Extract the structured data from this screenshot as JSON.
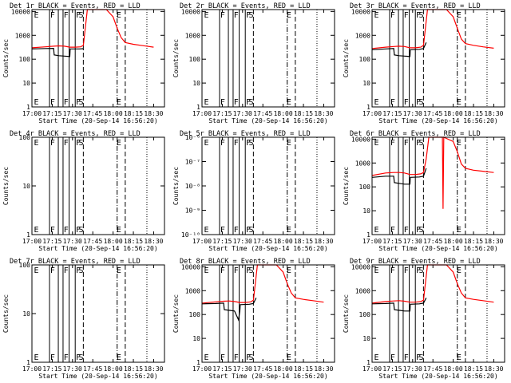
{
  "figure": {
    "background": "#ffffff",
    "axis_color": "#000000"
  },
  "shared": {
    "xtick_labels": [
      "17:00",
      "17:15",
      "17:30",
      "17:45",
      "18:00",
      "18:15",
      "18:30"
    ],
    "xlim_minutes": [
      1020,
      1118
    ],
    "ylabel": "Counts/sec",
    "marker_lines": [
      {
        "time_min": 1033,
        "style": "solid"
      },
      {
        "time_min": 1039.5,
        "style": "solid"
      },
      {
        "time_min": 1043,
        "style": "solid"
      },
      {
        "time_min": 1047.5,
        "style": "solid"
      },
      {
        "time_min": 1052,
        "style": "solid"
      },
      {
        "time_min": 1058,
        "style": "dashed"
      },
      {
        "time_min": 1083,
        "style": "dashdot"
      },
      {
        "time_min": 1089,
        "style": "dashed"
      },
      {
        "time_min": 1105,
        "style": "dotted"
      }
    ],
    "flag_letters": [
      {
        "letter": "E",
        "time_min": 1021.5
      },
      {
        "letter": "F",
        "time_min": 1033.5
      },
      {
        "letter": "F",
        "time_min": 1043.5
      },
      {
        "letter": "F",
        "time_min": 1052.5
      },
      {
        "letter": "S",
        "time_min": 1054.5
      },
      {
        "letter": "E",
        "time_min": 1082.5
      }
    ],
    "colors": {
      "events": "#000000",
      "lld": "#ff0000"
    }
  },
  "chart_data": [
    {
      "type": "line",
      "title": "Det 1r BLACK = Events, RED = LLD",
      "xlabel": "Start Time (20-Sep-14 16:56:20)",
      "ylabel": "Counts/sec",
      "yscale": "log",
      "ylim": [
        1,
        12000
      ],
      "ytick_labels": [
        "1",
        "10",
        "100",
        "1000",
        "10000"
      ],
      "ytick_values": [
        1,
        10,
        100,
        1000,
        10000
      ],
      "series": [
        {
          "name": "Events",
          "color": "#000000",
          "points": [
            [
              1020,
              270
            ],
            [
              1030,
              280
            ],
            [
              1036,
              285
            ],
            [
              1036.5,
              150
            ],
            [
              1040,
              140
            ],
            [
              1044,
              135
            ],
            [
              1048,
              130
            ],
            [
              1048.3,
              270
            ],
            [
              1055,
              270
            ],
            [
              1058,
              275
            ]
          ]
        },
        {
          "name": "LLD",
          "color": "#ff0000",
          "points": [
            [
              1020,
              300
            ],
            [
              1030,
              330
            ],
            [
              1036,
              350
            ],
            [
              1040,
              360
            ],
            [
              1044,
              350
            ],
            [
              1048,
              320
            ],
            [
              1052,
              320
            ],
            [
              1056,
              330
            ],
            [
              1058,
              380
            ],
            [
              1061,
              12000
            ],
            [
              1075,
              12000
            ],
            [
              1080,
              6000
            ],
            [
              1083,
              2000
            ],
            [
              1086,
              800
            ],
            [
              1089,
              500
            ],
            [
              1095,
              420
            ],
            [
              1102,
              370
            ],
            [
              1110,
              320
            ]
          ]
        }
      ]
    },
    {
      "type": "line",
      "title": "Det 2r BLACK = Events, RED = LLD",
      "xlabel": "Start Time (20-Sep-14 16:56:20)",
      "ylabel": "Counts/sec",
      "yscale": "log",
      "ylim": [
        1,
        12000
      ],
      "ytick_labels": [
        "1",
        "10",
        "100",
        "1000",
        "10000"
      ],
      "ytick_values": [
        1,
        10,
        100,
        1000,
        10000
      ],
      "series": []
    },
    {
      "type": "line",
      "title": "Det 3r BLACK = Events, RED = LLD",
      "xlabel": "Start Time (20-Sep-14 16:56:20)",
      "ylabel": "Counts/sec",
      "yscale": "log",
      "ylim": [
        1,
        12000
      ],
      "ytick_labels": [
        "1",
        "10",
        "100",
        "1000",
        "10000"
      ],
      "ytick_values": [
        1,
        10,
        100,
        1000,
        10000
      ],
      "series": [
        {
          "name": "Events",
          "color": "#000000",
          "points": [
            [
              1020,
              250
            ],
            [
              1030,
              270
            ],
            [
              1036,
              280
            ],
            [
              1036.5,
              150
            ],
            [
              1040,
              140
            ],
            [
              1044,
              135
            ],
            [
              1048,
              130
            ],
            [
              1048.3,
              250
            ],
            [
              1055,
              260
            ],
            [
              1058,
              280
            ],
            [
              1060,
              500
            ]
          ]
        },
        {
          "name": "LLD",
          "color": "#ff0000",
          "points": [
            [
              1020,
              280
            ],
            [
              1030,
              320
            ],
            [
              1036,
              340
            ],
            [
              1040,
              350
            ],
            [
              1044,
              340
            ],
            [
              1048,
              300
            ],
            [
              1052,
              300
            ],
            [
              1056,
              320
            ],
            [
              1058,
              380
            ],
            [
              1061,
              12000
            ],
            [
              1075,
              12000
            ],
            [
              1080,
              6000
            ],
            [
              1083,
              2000
            ],
            [
              1086,
              700
            ],
            [
              1089,
              450
            ],
            [
              1095,
              380
            ],
            [
              1102,
              330
            ],
            [
              1110,
              290
            ]
          ]
        }
      ]
    },
    {
      "type": "line",
      "title": "Det 4r BLACK = Events, RED = LLD",
      "xlabel": "Start Time (20-Sep-14 16:56:20)",
      "ylabel": "Counts/sec",
      "yscale": "log",
      "ylim": [
        1,
        100
      ],
      "ytick_labels": [
        "1",
        "10",
        "100"
      ],
      "ytick_values": [
        1,
        10,
        100
      ],
      "series": []
    },
    {
      "type": "line",
      "title": "Det 5r BLACK = Events, RED = LLD",
      "xlabel": "Start Time (20-Sep-14 16:56:20)",
      "ylabel": "Counts/sec",
      "yscale": "log",
      "ylim": [
        1e-10,
        1e-06
      ],
      "ytick_labels": [
        "10⁻¹⁰",
        "10⁻⁹",
        "10⁻⁸",
        "10⁻⁷",
        "10⁻⁶"
      ],
      "ytick_values": [
        1e-10,
        1e-09,
        1e-08,
        1e-07,
        1e-06
      ],
      "series": []
    },
    {
      "type": "line",
      "title": "Det 6r BLACK = Events, RED = LLD",
      "xlabel": "Start Time (20-Sep-14 16:56:20)",
      "ylabel": "Counts/sec",
      "yscale": "log",
      "ylim": [
        1,
        12000
      ],
      "ytick_labels": [
        "1",
        "10",
        "100",
        "1000",
        "10000"
      ],
      "ytick_values": [
        1,
        10,
        100,
        1000,
        10000
      ],
      "series": [
        {
          "name": "Events",
          "color": "#000000",
          "points": [
            [
              1020,
              250
            ],
            [
              1030,
              280
            ],
            [
              1036,
              280
            ],
            [
              1036.5,
              150
            ],
            [
              1040,
              140
            ],
            [
              1044,
              130
            ],
            [
              1048,
              130
            ],
            [
              1048.3,
              250
            ],
            [
              1055,
              260
            ],
            [
              1058,
              280
            ],
            [
              1060,
              600
            ]
          ]
        },
        {
          "name": "LLD",
          "color": "#ff0000",
          "points": [
            [
              1020,
              300
            ],
            [
              1030,
              380
            ],
            [
              1036,
              400
            ],
            [
              1040,
              400
            ],
            [
              1044,
              380
            ],
            [
              1048,
              330
            ],
            [
              1052,
              330
            ],
            [
              1056,
              350
            ],
            [
              1058,
              400
            ],
            [
              1060,
              1500
            ],
            [
              1062,
              12000
            ],
            [
              1072,
              12000
            ],
            [
              1072.5,
              12
            ],
            [
              1073,
              12000
            ],
            [
              1080,
              8000
            ],
            [
              1083,
              3000
            ],
            [
              1086,
              900
            ],
            [
              1089,
              600
            ],
            [
              1095,
              500
            ],
            [
              1102,
              450
            ],
            [
              1110,
              400
            ]
          ]
        }
      ]
    },
    {
      "type": "line",
      "title": "Det 7r BLACK = Events, RED = LLD",
      "xlabel": "Start Time (20-Sep-14 16:56:20)",
      "ylabel": "Counts/sec",
      "yscale": "log",
      "ylim": [
        1,
        100
      ],
      "ytick_labels": [
        "1",
        "10",
        "100"
      ],
      "ytick_values": [
        1,
        10,
        100
      ],
      "series": []
    },
    {
      "type": "line",
      "title": "Det 8r BLACK = Events, RED = LLD",
      "xlabel": "Start Time (20-Sep-14 16:56:20)",
      "ylabel": "Counts/sec",
      "yscale": "log",
      "ylim": [
        1,
        12000
      ],
      "ytick_labels": [
        "1",
        "10",
        "100",
        "1000",
        "10000"
      ],
      "ytick_values": [
        1,
        10,
        100,
        1000,
        10000
      ],
      "series": [
        {
          "name": "Events",
          "color": "#000000",
          "points": [
            [
              1020,
              280
            ],
            [
              1030,
              290
            ],
            [
              1036,
              300
            ],
            [
              1036.5,
              160
            ],
            [
              1040,
              150
            ],
            [
              1044,
              140
            ],
            [
              1047,
              60
            ],
            [
              1048,
              140
            ],
            [
              1048.3,
              260
            ],
            [
              1055,
              270
            ],
            [
              1058,
              290
            ],
            [
              1060,
              500
            ]
          ]
        },
        {
          "name": "LLD",
          "color": "#ff0000",
          "points": [
            [
              1020,
              300
            ],
            [
              1030,
              340
            ],
            [
              1036,
              360
            ],
            [
              1040,
              370
            ],
            [
              1044,
              350
            ],
            [
              1048,
              320
            ],
            [
              1052,
              320
            ],
            [
              1056,
              340
            ],
            [
              1058,
              400
            ],
            [
              1061,
              12000
            ],
            [
              1075,
              12000
            ],
            [
              1080,
              6000
            ],
            [
              1083,
              2000
            ],
            [
              1086,
              800
            ],
            [
              1089,
              500
            ],
            [
              1095,
              430
            ],
            [
              1102,
              380
            ],
            [
              1110,
              330
            ]
          ]
        }
      ]
    },
    {
      "type": "line",
      "title": "Det 9r BLACK = Events, RED = LLD",
      "xlabel": "Start Time (20-Sep-14 16:56:20)",
      "ylabel": "Counts/sec",
      "yscale": "log",
      "ylim": [
        1,
        12000
      ],
      "ytick_labels": [
        "1",
        "10",
        "100",
        "1000",
        "10000"
      ],
      "ytick_values": [
        1,
        10,
        100,
        1000,
        10000
      ],
      "series": [
        {
          "name": "Events",
          "color": "#000000",
          "points": [
            [
              1020,
              280
            ],
            [
              1030,
              290
            ],
            [
              1036,
              300
            ],
            [
              1036.5,
              160
            ],
            [
              1040,
              150
            ],
            [
              1044,
              140
            ],
            [
              1048,
              140
            ],
            [
              1048.3,
              270
            ],
            [
              1055,
              280
            ],
            [
              1058,
              300
            ],
            [
              1060,
              500
            ]
          ]
        },
        {
          "name": "LLD",
          "color": "#ff0000",
          "points": [
            [
              1020,
              300
            ],
            [
              1030,
              350
            ],
            [
              1036,
              370
            ],
            [
              1040,
              380
            ],
            [
              1044,
              360
            ],
            [
              1048,
              330
            ],
            [
              1052,
              330
            ],
            [
              1056,
              350
            ],
            [
              1058,
              400
            ],
            [
              1061,
              12000
            ],
            [
              1075,
              12000
            ],
            [
              1080,
              6000
            ],
            [
              1083,
              2000
            ],
            [
              1086,
              800
            ],
            [
              1089,
              500
            ],
            [
              1095,
              430
            ],
            [
              1102,
              380
            ],
            [
              1110,
              330
            ]
          ]
        }
      ]
    }
  ]
}
